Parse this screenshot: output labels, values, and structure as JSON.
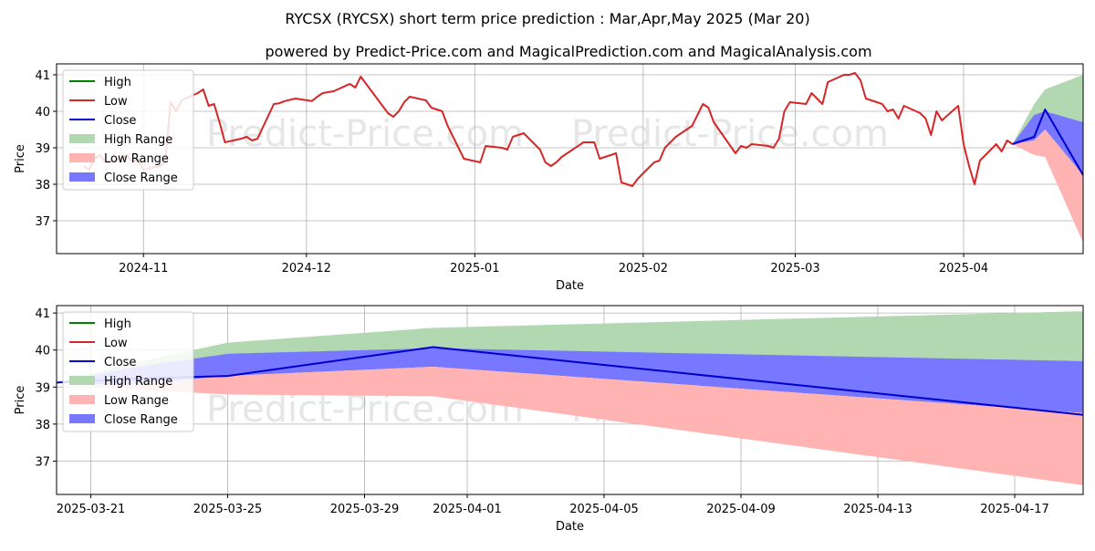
{
  "title": "RYCSX (RYCSX) short term price prediction : Mar,Apr,May 2025 (Mar 20)",
  "subtitle": "powered by Predict-Price.com and MagicalPrediction.com and MagicalAnalysis.com",
  "watermark": "Predict-Price.com",
  "colors": {
    "high": "#008000",
    "low": "#d62728",
    "close": "#0000cc",
    "high_range": "#b2d8b2",
    "low_range": "#ffb3b3",
    "close_range": "#7777ff"
  },
  "legend": {
    "entries": [
      "High",
      "Low",
      "Close",
      "High Range",
      "Low Range",
      "Close Range"
    ],
    "placement": "upper-left"
  },
  "chart_data": [
    {
      "type": "line",
      "xlabel": "Date",
      "ylabel": "Price",
      "xlim": [
        "2024-10-16",
        "2025-04-23"
      ],
      "ylim": [
        36.1,
        41.3
      ],
      "yticks": [
        37,
        38,
        39,
        40,
        41
      ],
      "xticks": [
        {
          "date": "2024-11-01",
          "label": "2024-11"
        },
        {
          "date": "2024-12-01",
          "label": "2024-12"
        },
        {
          "date": "2025-01-01",
          "label": "2025-01"
        },
        {
          "date": "2025-02-01",
          "label": "2025-02"
        },
        {
          "date": "2025-03-01",
          "label": "2025-03"
        },
        {
          "date": "2025-04-01",
          "label": "2025-04"
        }
      ],
      "grid": true,
      "series": [
        {
          "name": "Low",
          "points": [
            [
              "2024-10-21",
              38.5
            ],
            [
              "2024-10-22",
              38.4
            ],
            [
              "2024-10-23",
              38.7
            ],
            [
              "2024-10-24",
              38.8
            ],
            [
              "2024-10-25",
              38.6
            ],
            [
              "2024-10-28",
              38.7
            ],
            [
              "2024-10-29",
              38.8
            ],
            [
              "2024-10-30",
              38.6
            ],
            [
              "2024-10-31",
              38.7
            ],
            [
              "2024-11-01",
              38.4
            ],
            [
              "2024-11-04",
              38.5
            ],
            [
              "2024-11-05",
              38.6
            ],
            [
              "2024-11-06",
              40.25
            ],
            [
              "2024-11-07",
              40.0
            ],
            [
              "2024-11-08",
              40.3
            ],
            [
              "2024-11-11",
              40.5
            ],
            [
              "2024-11-12",
              40.6
            ],
            [
              "2024-11-13",
              40.15
            ],
            [
              "2024-11-14",
              40.2
            ],
            [
              "2024-11-15",
              39.7
            ],
            [
              "2024-11-16",
              39.15
            ],
            [
              "2024-11-19",
              39.25
            ],
            [
              "2024-11-20",
              39.3
            ],
            [
              "2024-11-21",
              39.2
            ],
            [
              "2024-11-22",
              39.25
            ],
            [
              "2024-11-25",
              40.2
            ],
            [
              "2024-11-26",
              40.22
            ],
            [
              "2024-11-27",
              40.28
            ],
            [
              "2024-11-29",
              40.35
            ],
            [
              "2024-12-02",
              40.28
            ],
            [
              "2024-12-03",
              40.4
            ],
            [
              "2024-12-04",
              40.5
            ],
            [
              "2024-12-06",
              40.55
            ],
            [
              "2024-12-09",
              40.75
            ],
            [
              "2024-12-10",
              40.65
            ],
            [
              "2024-12-11",
              40.95
            ],
            [
              "2024-12-12",
              40.75
            ],
            [
              "2024-12-16",
              39.95
            ],
            [
              "2024-12-17",
              39.85
            ],
            [
              "2024-12-18",
              40.0
            ],
            [
              "2024-12-19",
              40.25
            ],
            [
              "2024-12-20",
              40.4
            ],
            [
              "2024-12-23",
              40.3
            ],
            [
              "2024-12-24",
              40.1
            ],
            [
              "2024-12-26",
              40.0
            ],
            [
              "2024-12-27",
              39.6
            ],
            [
              "2024-12-30",
              38.7
            ],
            [
              "2025-01-02",
              38.6
            ],
            [
              "2025-01-03",
              39.05
            ],
            [
              "2025-01-06",
              39.0
            ],
            [
              "2025-01-07",
              38.95
            ],
            [
              "2025-01-08",
              39.3
            ],
            [
              "2025-01-10",
              39.4
            ],
            [
              "2025-01-13",
              38.95
            ],
            [
              "2025-01-14",
              38.6
            ],
            [
              "2025-01-15",
              38.5
            ],
            [
              "2025-01-16",
              38.6
            ],
            [
              "2025-01-17",
              38.75
            ],
            [
              "2025-01-21",
              39.15
            ],
            [
              "2025-01-22",
              39.15
            ],
            [
              "2025-01-23",
              39.15
            ],
            [
              "2025-01-24",
              38.7
            ],
            [
              "2025-01-27",
              38.85
            ],
            [
              "2025-01-28",
              38.05
            ],
            [
              "2025-01-29",
              38.0
            ],
            [
              "2025-01-30",
              37.95
            ],
            [
              "2025-01-31",
              38.15
            ],
            [
              "2025-02-03",
              38.6
            ],
            [
              "2025-02-04",
              38.65
            ],
            [
              "2025-02-05",
              39.0
            ],
            [
              "2025-02-07",
              39.3
            ],
            [
              "2025-02-10",
              39.6
            ],
            [
              "2025-02-11",
              39.9
            ],
            [
              "2025-02-12",
              40.2
            ],
            [
              "2025-02-13",
              40.1
            ],
            [
              "2025-02-14",
              39.7
            ],
            [
              "2025-02-18",
              38.85
            ],
            [
              "2025-02-19",
              39.05
            ],
            [
              "2025-02-20",
              39.0
            ],
            [
              "2025-02-21",
              39.1
            ],
            [
              "2025-02-24",
              39.05
            ],
            [
              "2025-02-25",
              39.0
            ],
            [
              "2025-02-26",
              39.25
            ],
            [
              "2025-02-27",
              40.0
            ],
            [
              "2025-02-28",
              40.25
            ],
            [
              "2025-03-03",
              40.2
            ],
            [
              "2025-03-04",
              40.5
            ],
            [
              "2025-03-05",
              40.35
            ],
            [
              "2025-03-06",
              40.2
            ],
            [
              "2025-03-07",
              40.8
            ],
            [
              "2025-03-10",
              41.0
            ],
            [
              "2025-03-11",
              41.0
            ],
            [
              "2025-03-12",
              41.05
            ],
            [
              "2025-03-13",
              40.85
            ],
            [
              "2025-03-14",
              40.35
            ],
            [
              "2025-03-17",
              40.2
            ],
            [
              "2025-03-18",
              40.0
            ],
            [
              "2025-03-19",
              40.05
            ],
            [
              "2025-03-20",
              39.8
            ],
            [
              "2025-03-21",
              40.15
            ],
            [
              "2025-03-24",
              39.95
            ],
            [
              "2025-03-25",
              39.8
            ],
            [
              "2025-03-26",
              39.35
            ],
            [
              "2025-03-27",
              40.0
            ],
            [
              "2025-03-28",
              39.75
            ],
            [
              "2025-03-31",
              40.15
            ],
            [
              "2025-04-01",
              39.1
            ],
            [
              "2025-04-02",
              38.5
            ],
            [
              "2025-04-03",
              38.0
            ],
            [
              "2025-04-04",
              38.65
            ],
            [
              "2025-04-07",
              39.1
            ],
            [
              "2025-04-08",
              38.9
            ],
            [
              "2025-04-09",
              39.2
            ],
            [
              "2025-04-10",
              39.1
            ]
          ]
        },
        {
          "name": "Close",
          "points": [
            [
              "2025-04-10",
              39.1
            ],
            [
              "2025-04-14",
              39.3
            ],
            [
              "2025-04-16",
              40.05
            ],
            [
              "2025-04-23",
              38.25
            ]
          ]
        }
      ],
      "ranges": [
        {
          "name": "High Range",
          "x": [
            "2025-04-10",
            "2025-04-14",
            "2025-04-16",
            "2025-04-23"
          ],
          "upper": [
            39.1,
            40.2,
            40.6,
            41.0
          ],
          "lower": [
            39.1,
            39.5,
            39.9,
            39.7
          ]
        },
        {
          "name": "Close Range",
          "x": [
            "2025-04-10",
            "2025-04-14",
            "2025-04-16",
            "2025-04-23"
          ],
          "upper": [
            39.1,
            39.9,
            40.0,
            39.7
          ],
          "lower": [
            39.1,
            39.2,
            39.5,
            38.25
          ]
        },
        {
          "name": "Low Range",
          "x": [
            "2025-04-10",
            "2025-04-14",
            "2025-04-16",
            "2025-04-23"
          ],
          "upper": [
            39.1,
            39.2,
            39.5,
            38.25
          ],
          "lower": [
            39.1,
            38.8,
            38.75,
            36.4
          ]
        }
      ]
    },
    {
      "type": "line",
      "xlabel": "Date",
      "ylabel": "Price",
      "xlim": [
        "2025-03-20",
        "2025-04-19"
      ],
      "ylim": [
        36.1,
        41.2
      ],
      "yticks": [
        37,
        38,
        39,
        40,
        41
      ],
      "xticks": [
        {
          "date": "2025-03-21",
          "label": "2025-03-21"
        },
        {
          "date": "2025-03-25",
          "label": "2025-03-25"
        },
        {
          "date": "2025-03-29",
          "label": "2025-03-29"
        },
        {
          "date": "2025-04-01",
          "label": "2025-04-01"
        },
        {
          "date": "2025-04-05",
          "label": "2025-04-05"
        },
        {
          "date": "2025-04-09",
          "label": "2025-04-09"
        },
        {
          "date": "2025-04-13",
          "label": "2025-04-13"
        },
        {
          "date": "2025-04-17",
          "label": "2025-04-17"
        }
      ],
      "grid": true,
      "series": [
        {
          "name": "Close",
          "points": [
            [
              "2025-03-20",
              39.12
            ],
            [
              "2025-03-22",
              39.22
            ],
            [
              "2025-03-25",
              39.3
            ],
            [
              "2025-03-31",
              40.08
            ],
            [
              "2025-04-19",
              38.25
            ]
          ]
        }
      ],
      "ranges": [
        {
          "name": "High Range",
          "x": [
            "2025-03-20",
            "2025-03-22",
            "2025-03-25",
            "2025-03-31",
            "2025-04-19"
          ],
          "upper": [
            39.12,
            39.6,
            40.2,
            40.6,
            41.05
          ],
          "lower": [
            39.12,
            39.5,
            39.9,
            40.0,
            39.7
          ]
        },
        {
          "name": "Close Range",
          "x": [
            "2025-03-20",
            "2025-03-22",
            "2025-03-25",
            "2025-03-31",
            "2025-04-19"
          ],
          "upper": [
            39.12,
            39.5,
            39.9,
            40.05,
            39.7
          ],
          "lower": [
            39.12,
            39.05,
            39.3,
            39.55,
            38.3
          ]
        },
        {
          "name": "Low Range",
          "x": [
            "2025-03-20",
            "2025-03-22",
            "2025-03-25",
            "2025-03-31",
            "2025-04-19"
          ],
          "upper": [
            39.12,
            39.05,
            39.3,
            39.55,
            38.3
          ],
          "lower": [
            39.12,
            38.95,
            38.8,
            38.75,
            36.35
          ]
        }
      ]
    }
  ]
}
